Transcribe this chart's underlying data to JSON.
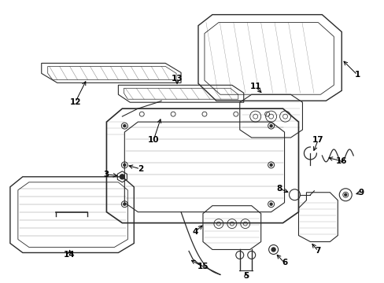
{
  "bg_color": "#ffffff",
  "lc": "#2a2a2a",
  "lw": 0.8,
  "figsize": [
    4.89,
    3.6
  ],
  "dpi": 100
}
